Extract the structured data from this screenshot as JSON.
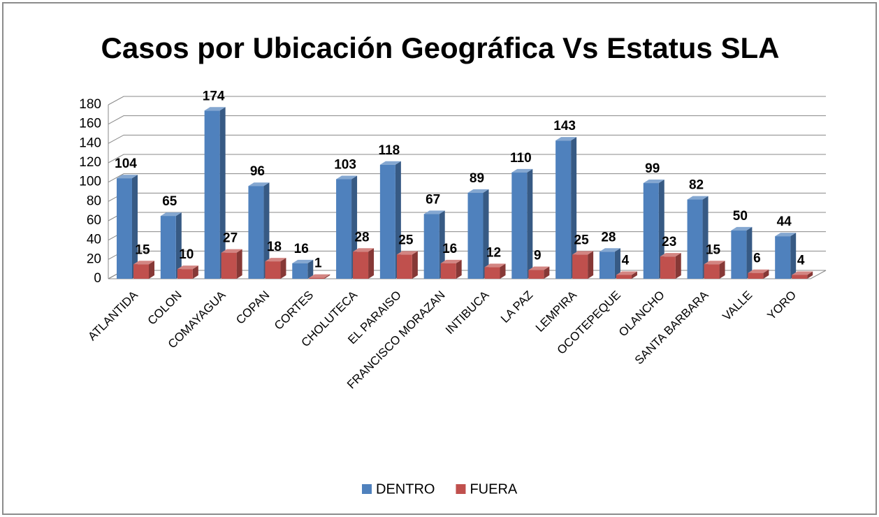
{
  "chart_data": {
    "type": "bar3d",
    "title": "Casos por Ubicación Geográfica Vs Estatus SLA",
    "categories": [
      "ATLANTIDA",
      "COLON",
      "COMAYAGUA",
      "COPAN",
      "CORTES",
      "CHOLUTECA",
      "EL PARAISO",
      "FRANCISCO MORAZAN",
      "INTIBUCA",
      "LA PAZ",
      "LEMPIRA",
      "OCOTEPEQUE",
      "OLANCHO",
      "SANTA BARBARA",
      "VALLE",
      "YORO"
    ],
    "series": [
      {
        "name": "DENTRO",
        "color": "#4f81bd",
        "values": [
          104,
          65,
          174,
          96,
          16,
          103,
          118,
          67,
          89,
          110,
          143,
          28,
          99,
          82,
          50,
          44
        ]
      },
      {
        "name": "FUERA",
        "color": "#c0504d",
        "values": [
          15,
          10,
          27,
          18,
          1,
          28,
          25,
          16,
          12,
          9,
          25,
          4,
          23,
          15,
          6,
          4
        ]
      }
    ],
    "ylim": [
      0,
      180
    ],
    "yticks": [
      0,
      20,
      40,
      60,
      80,
      100,
      120,
      140,
      160,
      180
    ],
    "grid": true,
    "legend": "bottom"
  }
}
